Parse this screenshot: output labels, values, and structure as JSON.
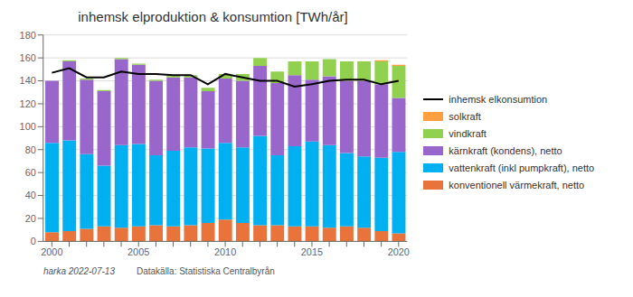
{
  "chart_data": {
    "type": "bar",
    "title": "inhemsk elproduktion & konsumtion [TWh/år]",
    "categories": [
      "2000",
      null,
      null,
      null,
      null,
      "2005",
      null,
      null,
      null,
      null,
      "2010",
      null,
      null,
      null,
      null,
      "2015",
      null,
      null,
      null,
      null,
      "2020"
    ],
    "stacked": true,
    "grid": true,
    "legend": "right",
    "ylim": [
      0,
      180
    ],
    "yticks": [
      0,
      20,
      40,
      60,
      80,
      100,
      120,
      140,
      160,
      180
    ],
    "series": [
      {
        "name": "konventionell värmekraft, netto",
        "color": "#E8743B",
        "values": [
          8,
          9,
          11,
          13,
          12,
          13,
          14,
          13,
          14,
          16,
          19,
          16,
          14,
          14,
          13,
          13,
          12,
          13,
          12,
          9,
          7
        ]
      },
      {
        "name": "vattenkraft (inkl pumpkraft), netto",
        "color": "#00B0F0",
        "values": [
          78,
          79,
          65,
          53,
          72,
          72,
          61,
          66,
          68,
          65,
          67,
          66,
          78,
          61,
          70,
          74,
          72,
          64,
          62,
          64,
          71
        ]
      },
      {
        "name": "kärnkraft (kondens), netto",
        "color": "#9966CC",
        "values": [
          54,
          69,
          65,
          65,
          75,
          69,
          65,
          64,
          61,
          50,
          56,
          58,
          61,
          63,
          62,
          54,
          60,
          63,
          66,
          64,
          47
        ]
      },
      {
        "name": "vindkraft",
        "color": "#92D050",
        "values": [
          0,
          1,
          1,
          1,
          1,
          1,
          1,
          2,
          2,
          3,
          4,
          6,
          7,
          10,
          12,
          16,
          15,
          17,
          17,
          20,
          28
        ]
      },
      {
        "name": "solkraft",
        "color": "#FFA040",
        "values": [
          0,
          0,
          0,
          0,
          0,
          0,
          0,
          0,
          0,
          0,
          0,
          0,
          0,
          0,
          0,
          0,
          0,
          0,
          0,
          1,
          1
        ]
      },
      {
        "name": "inhemsk elkonsumtion",
        "type": "line",
        "color": "#000000",
        "values": [
          147,
          151,
          143,
          143,
          148,
          146,
          146,
          145,
          145,
          137,
          146,
          143,
          140,
          140,
          135,
          137,
          140,
          141,
          141,
          137,
          140
        ]
      }
    ],
    "annotations": [
      "harka 2022-07-13",
      "Datakälla: Statistiska Centralbyrån"
    ]
  }
}
